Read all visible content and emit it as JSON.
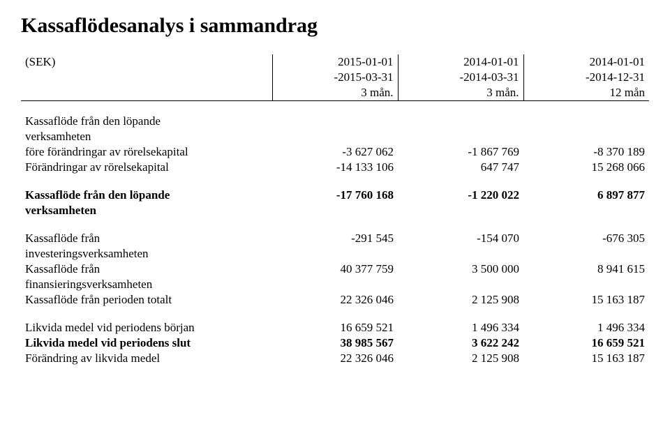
{
  "title": "Kassaflödesanalys i sammandrag",
  "header": {
    "row1": {
      "label": "(SEK)",
      "c1": "2015-01-01",
      "c2": "2014-01-01",
      "c3": "2014-01-01"
    },
    "row2": {
      "label": "",
      "c1": "-2015-03-31",
      "c2": "-2014-03-31",
      "c3": "-2014-12-31"
    },
    "row3": {
      "label": "",
      "c1": "3 mån.",
      "c2": "3 mån.",
      "c3": "12 mån"
    }
  },
  "rows": {
    "op_before_l1": "Kassaflöde från den löpande",
    "op_before_l2": "verksamheten",
    "op_before_l3": {
      "label": "före förändringar av rörelsekapital",
      "c1": "-3 627 062",
      "c2": "-1 867 769",
      "c3": "-8 370 189"
    },
    "wc_changes": {
      "label": "Förändringar av rörelsekapital",
      "c1": "-14 133 106",
      "c2": "647 747",
      "c3": "15 268 066"
    },
    "op_total_l1": {
      "label": "Kassaflöde från den löpande",
      "c1": "-17 760 168",
      "c2": "-1 220 022",
      "c3": "6 897 877"
    },
    "op_total_l2": "verksamheten",
    "inv_l1": {
      "label": "Kassaflöde från",
      "c1": "-291 545",
      "c2": "-154 070",
      "c3": "-676 305"
    },
    "inv_l2": "investeringsverksamheten",
    "fin_l1": {
      "label": "Kassaflöde från",
      "c1": "40 377 759",
      "c2": "3 500 000",
      "c3": "8 941 615"
    },
    "fin_l2": "finansieringsverksamheten",
    "period_total": {
      "label": "Kassaflöde från perioden totalt",
      "c1": "22 326 046",
      "c2": "2 125 908",
      "c3": "15 163 187"
    },
    "cash_begin": {
      "label": "Likvida medel vid periodens början",
      "c1": "16 659 521",
      "c2": "1 496 334",
      "c3": "1 496 334"
    },
    "cash_end": {
      "label": "Likvida medel vid periodens slut",
      "c1": "38 985 567",
      "c2": "3 622 242",
      "c3": "16 659 521"
    },
    "cash_change": {
      "label": "Förändring av likvida medel",
      "c1": "22 326 046",
      "c2": "2 125 908",
      "c3": "15 163 187"
    }
  }
}
